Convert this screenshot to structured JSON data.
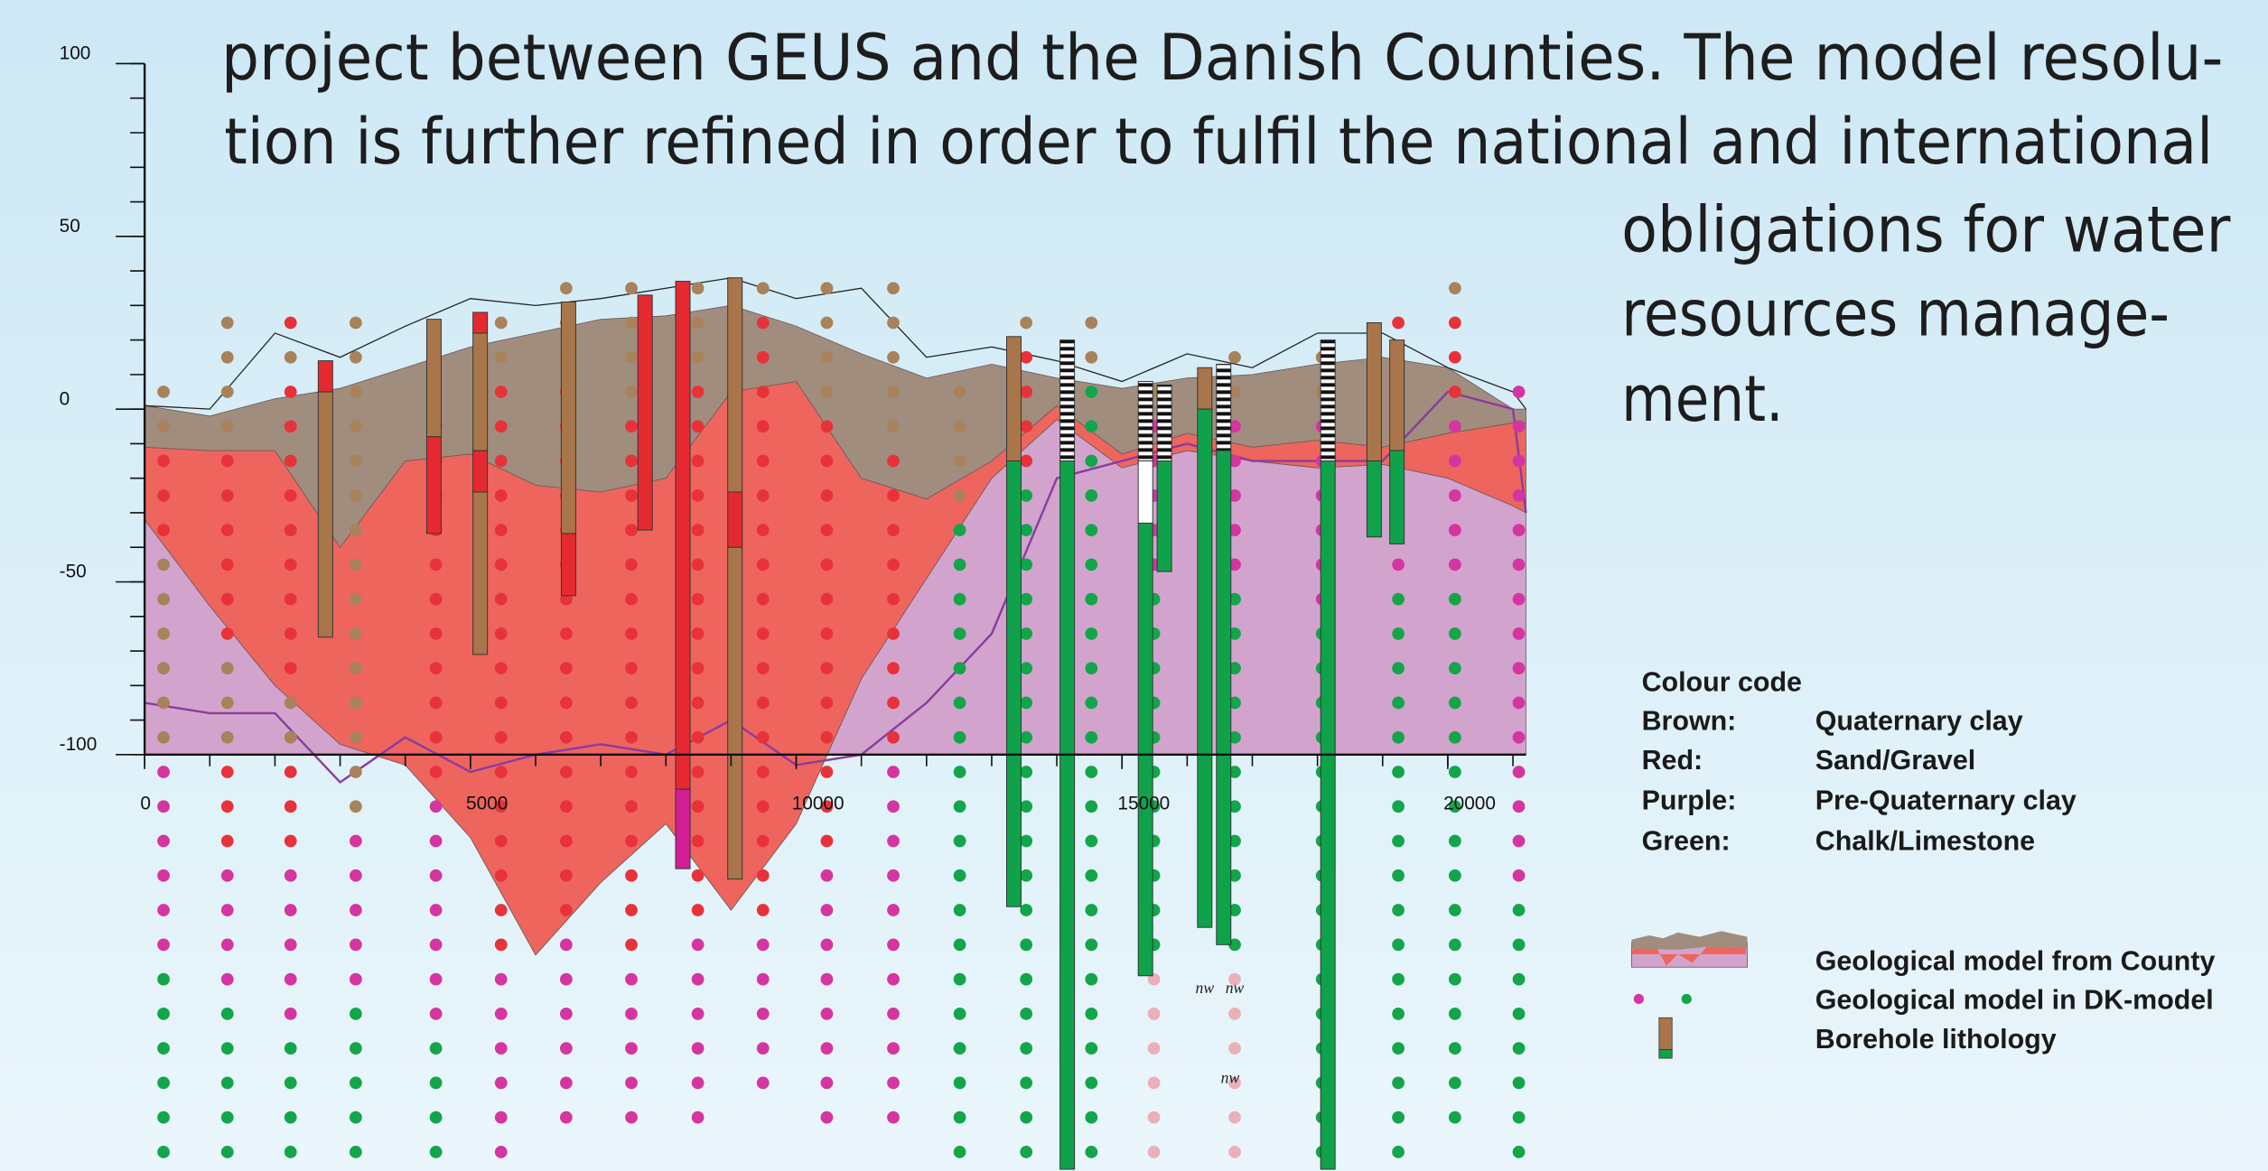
{
  "text": {
    "lines": [
      "project between GEUS and the Danish Counties. The model resolu-",
      "tion is further refined in order to fulfil the national and international",
      "obligations for water",
      "resources manage-",
      "ment."
    ]
  },
  "legend": {
    "title": "Colour code",
    "rows": [
      [
        "Brown:",
        "Quaternary clay"
      ],
      [
        "Red:",
        "Sand/Gravel"
      ],
      [
        "Purple:",
        "Pre-Quaternary clay"
      ],
      [
        "Green:",
        "Chalk/Limestone"
      ]
    ],
    "symbols": [
      "Geological model from County",
      "Geological model in DK-model",
      "Borehole lithology"
    ]
  },
  "chart_data": {
    "type": "cross-section",
    "xlim": [
      0,
      21200
    ],
    "ylim": [
      -100,
      100
    ],
    "xticks": [
      0,
      5000,
      10000,
      15000,
      20000
    ],
    "yticks": [
      100,
      50,
      0,
      -50,
      -100
    ],
    "x_minor_step": 1000,
    "y_minor_step": 10,
    "x": [
      0,
      1000,
      2000,
      3000,
      4000,
      5000,
      6000,
      7000,
      8000,
      9000,
      10000,
      11000,
      12000,
      13000,
      14000,
      15000,
      16000,
      17000,
      18000,
      19000,
      20000,
      21000,
      21200
    ],
    "series": [
      {
        "color": "#a18d7e",
        "values": [
          1,
          -2,
          3,
          6,
          12,
          18,
          22,
          26,
          27,
          30,
          24,
          16,
          9,
          13,
          9,
          6,
          9,
          10,
          13,
          15,
          12,
          0,
          0
        ]
      },
      {
        "color": "#ee655e",
        "values": [
          -11,
          -12,
          -12,
          -40,
          -15,
          -13,
          -22,
          -24,
          -20,
          5,
          8,
          -20,
          -26,
          -15,
          1,
          -13,
          -7,
          -11,
          -9,
          -11,
          -7,
          -4,
          -4
        ]
      },
      {
        "color": "#d2a4cd",
        "values": [
          -32,
          -57,
          -80,
          -97,
          -103,
          -124,
          -158,
          -137,
          -120,
          -145,
          -120,
          -78,
          -49,
          -20,
          -3,
          -17,
          -12,
          -15,
          -17,
          -16,
          -20,
          -28,
          -30
        ]
      },
      {
        "color": "#8a3c9e",
        "line": true,
        "values": [
          -85,
          -88,
          -88,
          -108,
          -95,
          -105,
          -100,
          -97,
          -100,
          -90,
          -103,
          -100,
          -85,
          -65,
          -20,
          -15,
          -10,
          -15,
          -15,
          -15,
          5,
          0,
          -30
        ]
      },
      {
        "color": "#222222",
        "line": true,
        "values": [
          1,
          0,
          22,
          15,
          24,
          32,
          30,
          32,
          35,
          38,
          32,
          35,
          15,
          18,
          14,
          8,
          16,
          12,
          22,
          22,
          12,
          5,
          0
        ]
      }
    ],
    "dot_step": 10,
    "dot_colors": {
      "b": "#a8825a",
      "r": "#e8323a",
      "p": "#d535a0",
      "g": "#13a54a",
      "l": "#eab0b8"
    },
    "dot_columns": [
      {
        "x": 290,
        "top": 5,
        "codes": "bbrrrbbbbbbppppppgggggg"
      },
      {
        "x": 1270,
        "top": 25,
        "codes": "bbbbrrrrrrbbbrrrppppggggg"
      },
      {
        "x": 2240,
        "top": 25,
        "codes": "rbrrrrrrrrrbbrrrpppppgggg"
      },
      {
        "x": 3240,
        "top": 25,
        "codes": "bbbbbbbbbbbbbbbpppppggggg"
      },
      {
        "x": 4470,
        "top": 5,
        "codes": "brrrrrrrrrrrpppppppgggg"
      },
      {
        "x": 5470,
        "top": 25,
        "codes": "bbrrrrrrrrrrrrrrrrrpppppp"
      },
      {
        "x": 6470,
        "top": 35,
        "codes": "bbbrrrrrrrrrrrrrrrrpppppp"
      },
      {
        "x": 7470,
        "top": 35,
        "codes": "bbbbrrrrrrrrrrrrrrrrppppp"
      },
      {
        "x": 8490,
        "top": 35,
        "codes": "bbbrrrrrrrrrrrrrrrrpppppp"
      },
      {
        "x": 9490,
        "top": 35,
        "codes": "brrrrrrrrrrrrrrrrrrppppp"
      },
      {
        "x": 10470,
        "top": 35,
        "codes": "bbbbrrrrrrrrrrrrrpppppppp"
      },
      {
        "x": 11490,
        "top": 35,
        "codes": "bbbbbrrrrrrrrrppppppppppp"
      },
      {
        "x": 12510,
        "top": 5,
        "codes": "bbbbggggggggggggggggggg"
      },
      {
        "x": 13530,
        "top": 25,
        "codes": "brrrrgggggggggggggggggggg"
      },
      {
        "x": 14530,
        "top": 25,
        "codes": "bbggggggggggggggggggggggg"
      },
      {
        "x": 15490,
        "top": 5,
        "codes": "bpppppgggggggggggllllll"
      },
      {
        "x": 16730,
        "top": 15,
        "codes": "bbpppppgggggggggggllllll"
      },
      {
        "x": 18070,
        "top": 15,
        "codes": "bbppppppggggggggggggggggg"
      },
      {
        "x": 19240,
        "top": 25,
        "codes": "rbbpppppggggggggggggggggg"
      },
      {
        "x": 20110,
        "top": 35,
        "codes": "brrrpppppgggggggggggggggg"
      },
      {
        "x": 21090,
        "top": 5,
        "codes": "pppppppppppppppgggggggg"
      }
    ],
    "borehole_colors": {
      "b": "#a8764a",
      "r": "#e42a30",
      "p": "#d21f95",
      "g": "#0fa24a",
      "w": "#ffffff",
      "k": "url(#stripes)"
    },
    "boreholes": [
      {
        "x": 2775,
        "segments": [
          [
            14,
            5,
            "r"
          ],
          [
            5,
            -66,
            "b"
          ]
        ]
      },
      {
        "x": 4440,
        "segments": [
          [
            26,
            -8,
            "b"
          ],
          [
            -8,
            -36,
            "r"
          ]
        ]
      },
      {
        "x": 5150,
        "segments": [
          [
            28,
            22,
            "r"
          ],
          [
            22,
            -12,
            "b"
          ],
          [
            -12,
            -24,
            "r"
          ],
          [
            -24,
            -71,
            "b"
          ]
        ]
      },
      {
        "x": 6505,
        "segments": [
          [
            31,
            -36,
            "b"
          ],
          [
            -36,
            -54,
            "r"
          ]
        ]
      },
      {
        "x": 7680,
        "segments": [
          [
            33,
            -35,
            "r"
          ]
        ]
      },
      {
        "x": 8260,
        "segments": [
          [
            37,
            -110,
            "r"
          ],
          [
            -110,
            -133,
            "p"
          ]
        ]
      },
      {
        "x": 9060,
        "segments": [
          [
            38,
            -24,
            "b"
          ],
          [
            -24,
            -40,
            "r"
          ],
          [
            -40,
            -136,
            "b"
          ]
        ]
      },
      {
        "x": 13340,
        "segments": [
          [
            21,
            -15,
            "b"
          ],
          [
            -15,
            -144,
            "g"
          ]
        ]
      },
      {
        "x": 14160,
        "segments": [
          [
            20,
            -15,
            "k"
          ],
          [
            -15,
            -220,
            "g"
          ]
        ]
      },
      {
        "x": 15360,
        "segments": [
          [
            8,
            -15,
            "k"
          ],
          [
            -15,
            -33,
            "w"
          ],
          [
            -33,
            -164,
            "g"
          ]
        ]
      },
      {
        "x": 15650,
        "segments": [
          [
            7,
            -15,
            "k"
          ],
          [
            -15,
            -47,
            "g"
          ]
        ]
      },
      {
        "x": 16270,
        "segments": [
          [
            12,
            0,
            "b"
          ],
          [
            0,
            -150,
            "g"
          ]
        ]
      },
      {
        "x": 16560,
        "segments": [
          [
            13,
            -12,
            "k"
          ],
          [
            -12,
            -155,
            "g"
          ]
        ]
      },
      {
        "x": 18160,
        "segments": [
          [
            20,
            -15,
            "k"
          ],
          [
            -15,
            -220,
            "g"
          ]
        ]
      },
      {
        "x": 18870,
        "segments": [
          [
            25,
            -15,
            "b"
          ],
          [
            -15,
            -37,
            "g"
          ]
        ]
      },
      {
        "x": 19220,
        "segments": [
          [
            20,
            -12,
            "b"
          ],
          [
            -12,
            -39,
            "g"
          ]
        ]
      }
    ],
    "annotations": [
      {
        "text": "nw",
        "x": 16270,
        "y": -169
      },
      {
        "text": "nw",
        "x": 16730,
        "y": -169
      },
      {
        "text": "nw",
        "x": 16660,
        "y": -195
      }
    ]
  }
}
